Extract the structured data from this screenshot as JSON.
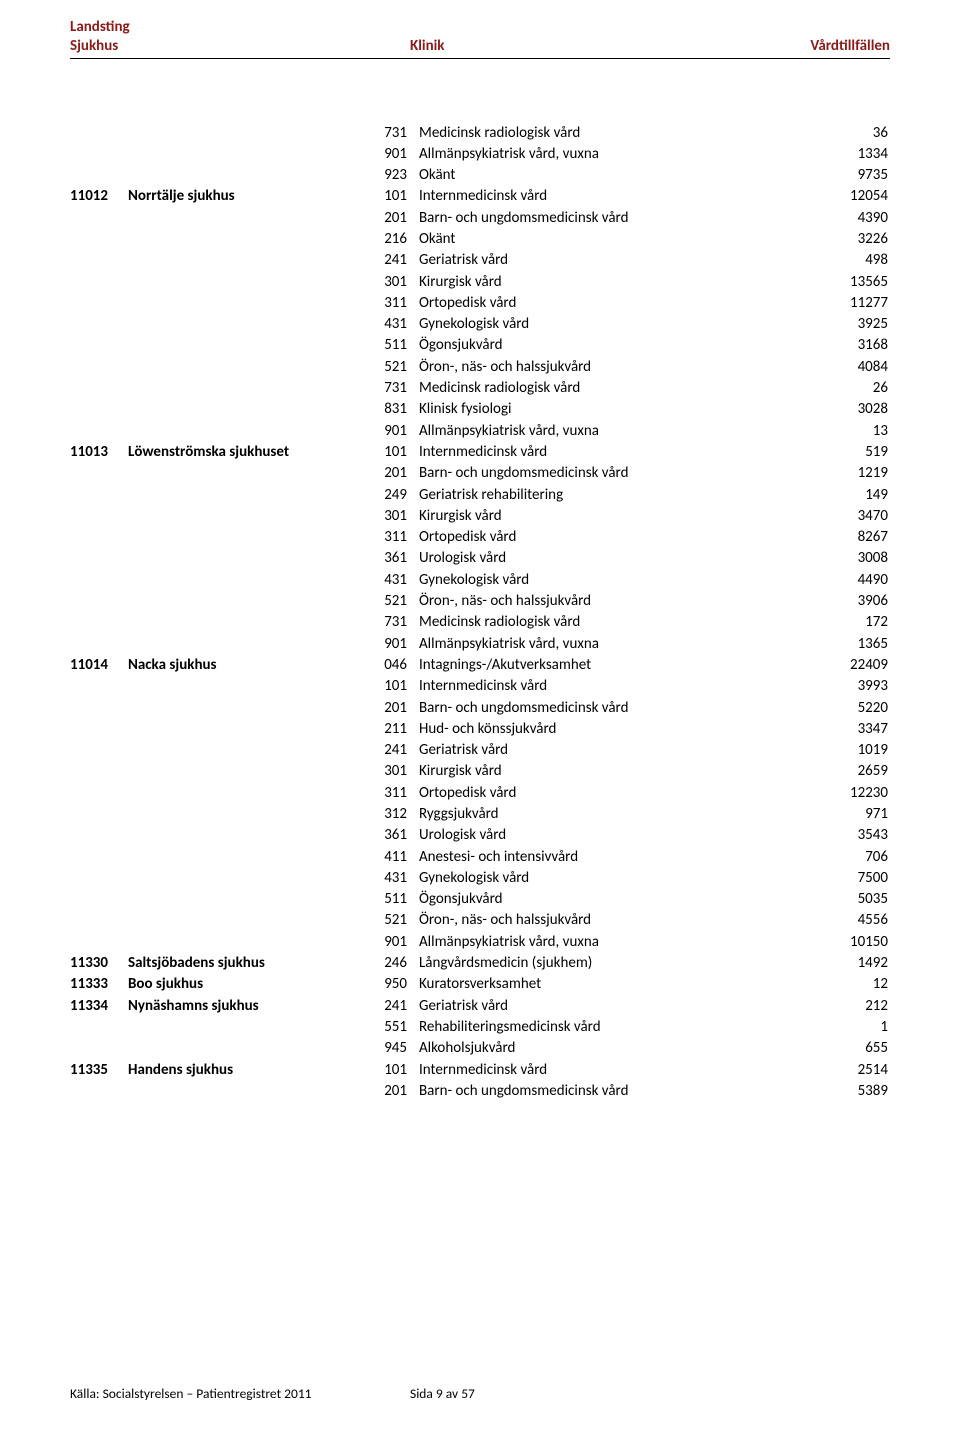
{
  "header": {
    "line1_left": "Landsting",
    "line2_left": "Sjukhus",
    "line2_mid": "Klinik",
    "line2_right": "Vårdtillfällen"
  },
  "rows": [
    {
      "code": "",
      "hosp": "",
      "kcode": "731",
      "klinik": "Medicinsk radiologisk vård",
      "val": "36"
    },
    {
      "code": "",
      "hosp": "",
      "kcode": "901",
      "klinik": "Allmänpsykiatrisk vård, vuxna",
      "val": "1334"
    },
    {
      "code": "",
      "hosp": "",
      "kcode": "923",
      "klinik": "Okänt",
      "val": "9735"
    },
    {
      "code": "11012",
      "hosp": "Norrtälje sjukhus",
      "kcode": "101",
      "klinik": "Internmedicinsk vård",
      "val": "12054"
    },
    {
      "code": "",
      "hosp": "",
      "kcode": "201",
      "klinik": "Barn- och ungdomsmedicinsk vård",
      "val": "4390"
    },
    {
      "code": "",
      "hosp": "",
      "kcode": "216",
      "klinik": "Okänt",
      "val": "3226"
    },
    {
      "code": "",
      "hosp": "",
      "kcode": "241",
      "klinik": "Geriatrisk vård",
      "val": "498"
    },
    {
      "code": "",
      "hosp": "",
      "kcode": "301",
      "klinik": "Kirurgisk vård",
      "val": "13565"
    },
    {
      "code": "",
      "hosp": "",
      "kcode": "311",
      "klinik": "Ortopedisk vård",
      "val": "11277"
    },
    {
      "code": "",
      "hosp": "",
      "kcode": "431",
      "klinik": "Gynekologisk vård",
      "val": "3925"
    },
    {
      "code": "",
      "hosp": "",
      "kcode": "511",
      "klinik": "Ögonsjukvård",
      "val": "3168"
    },
    {
      "code": "",
      "hosp": "",
      "kcode": "521",
      "klinik": "Öron-, näs- och halssjukvård",
      "val": "4084"
    },
    {
      "code": "",
      "hosp": "",
      "kcode": "731",
      "klinik": "Medicinsk radiologisk vård",
      "val": "26"
    },
    {
      "code": "",
      "hosp": "",
      "kcode": "831",
      "klinik": "Klinisk fysiologi",
      "val": "3028"
    },
    {
      "code": "",
      "hosp": "",
      "kcode": "901",
      "klinik": "Allmänpsykiatrisk vård, vuxna",
      "val": "13"
    },
    {
      "code": "11013",
      "hosp": "Löwenströmska sjukhuset",
      "kcode": "101",
      "klinik": "Internmedicinsk vård",
      "val": "519"
    },
    {
      "code": "",
      "hosp": "",
      "kcode": "201",
      "klinik": "Barn- och ungdomsmedicinsk vård",
      "val": "1219"
    },
    {
      "code": "",
      "hosp": "",
      "kcode": "249",
      "klinik": "Geriatrisk rehabilitering",
      "val": "149"
    },
    {
      "code": "",
      "hosp": "",
      "kcode": "301",
      "klinik": "Kirurgisk vård",
      "val": "3470"
    },
    {
      "code": "",
      "hosp": "",
      "kcode": "311",
      "klinik": "Ortopedisk vård",
      "val": "8267"
    },
    {
      "code": "",
      "hosp": "",
      "kcode": "361",
      "klinik": "Urologisk vård",
      "val": "3008"
    },
    {
      "code": "",
      "hosp": "",
      "kcode": "431",
      "klinik": "Gynekologisk vård",
      "val": "4490"
    },
    {
      "code": "",
      "hosp": "",
      "kcode": "521",
      "klinik": "Öron-, näs- och halssjukvård",
      "val": "3906"
    },
    {
      "code": "",
      "hosp": "",
      "kcode": "731",
      "klinik": "Medicinsk radiologisk vård",
      "val": "172"
    },
    {
      "code": "",
      "hosp": "",
      "kcode": "901",
      "klinik": "Allmänpsykiatrisk vård, vuxna",
      "val": "1365"
    },
    {
      "code": "11014",
      "hosp": "Nacka sjukhus",
      "kcode": "046",
      "klinik": "Intagnings-/Akutverksamhet",
      "val": "22409"
    },
    {
      "code": "",
      "hosp": "",
      "kcode": "101",
      "klinik": "Internmedicinsk vård",
      "val": "3993"
    },
    {
      "code": "",
      "hosp": "",
      "kcode": "201",
      "klinik": "Barn- och ungdomsmedicinsk vård",
      "val": "5220"
    },
    {
      "code": "",
      "hosp": "",
      "kcode": "211",
      "klinik": "Hud- och könssjukvård",
      "val": "3347"
    },
    {
      "code": "",
      "hosp": "",
      "kcode": "241",
      "klinik": "Geriatrisk vård",
      "val": "1019"
    },
    {
      "code": "",
      "hosp": "",
      "kcode": "301",
      "klinik": "Kirurgisk vård",
      "val": "2659"
    },
    {
      "code": "",
      "hosp": "",
      "kcode": "311",
      "klinik": "Ortopedisk vård",
      "val": "12230"
    },
    {
      "code": "",
      "hosp": "",
      "kcode": "312",
      "klinik": "Ryggsjukvård",
      "val": "971"
    },
    {
      "code": "",
      "hosp": "",
      "kcode": "361",
      "klinik": "Urologisk vård",
      "val": "3543"
    },
    {
      "code": "",
      "hosp": "",
      "kcode": "411",
      "klinik": "Anestesi- och intensivvård",
      "val": "706"
    },
    {
      "code": "",
      "hosp": "",
      "kcode": "431",
      "klinik": "Gynekologisk vård",
      "val": "7500"
    },
    {
      "code": "",
      "hosp": "",
      "kcode": "511",
      "klinik": "Ögonsjukvård",
      "val": "5035"
    },
    {
      "code": "",
      "hosp": "",
      "kcode": "521",
      "klinik": "Öron-, näs- och halssjukvård",
      "val": "4556"
    },
    {
      "code": "",
      "hosp": "",
      "kcode": "901",
      "klinik": "Allmänpsykiatrisk vård, vuxna",
      "val": "10150"
    },
    {
      "code": "11330",
      "hosp": "Saltsjöbadens sjukhus",
      "kcode": "246",
      "klinik": "Långvårdsmedicin (sjukhem)",
      "val": "1492"
    },
    {
      "code": "11333",
      "hosp": "Boo sjukhus",
      "kcode": "950",
      "klinik": "Kuratorsverksamhet",
      "val": "12"
    },
    {
      "code": "11334",
      "hosp": "Nynäshamns sjukhus",
      "kcode": "241",
      "klinik": "Geriatrisk vård",
      "val": "212"
    },
    {
      "code": "",
      "hosp": "",
      "kcode": "551",
      "klinik": "Rehabiliteringsmedicinsk vård",
      "val": "1"
    },
    {
      "code": "",
      "hosp": "",
      "kcode": "945",
      "klinik": "Alkoholsjukvård",
      "val": "655"
    },
    {
      "code": "11335",
      "hosp": "Handens sjukhus",
      "kcode": "101",
      "klinik": "Internmedicinsk vård",
      "val": "2514"
    },
    {
      "code": "",
      "hosp": "",
      "kcode": "201",
      "klinik": "Barn- och ungdomsmedicinsk vård",
      "val": "5389"
    }
  ],
  "footer": {
    "left": "Källa: Socialstyrelsen – Patientregistret 2011",
    "mid": "Sida 9 av 57"
  }
}
